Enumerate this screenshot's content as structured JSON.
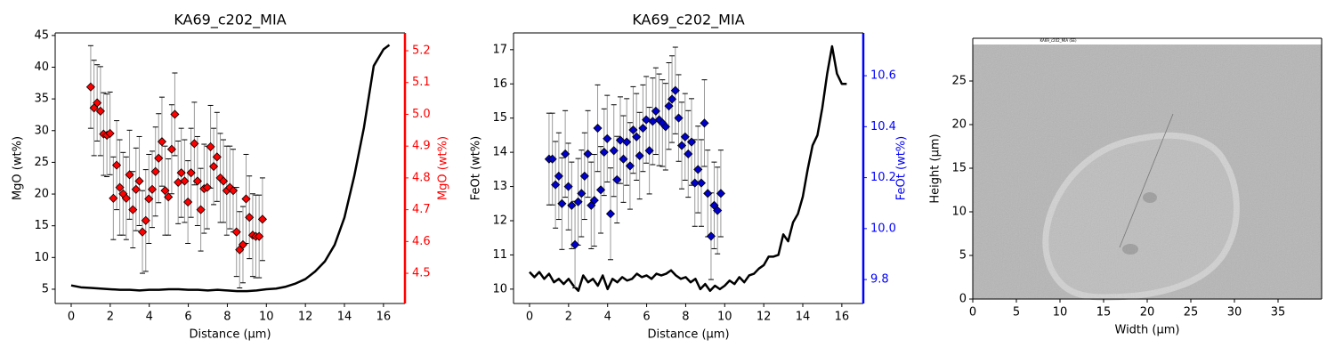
{
  "chart_data": [
    {
      "type": "line",
      "title": "KA69_c202_MIA",
      "xlabel": "Distance (µm)",
      "ylabel": "MgO (wt%)",
      "y2label": "MgO (wt%)",
      "y2color": "red",
      "xlim": [
        -0.82,
        17.1
      ],
      "xticks": [
        0,
        2,
        4,
        6,
        8,
        10,
        12,
        14,
        16
      ],
      "ylim": [
        2.75,
        45.4
      ],
      "yticks": [
        5,
        10,
        15,
        20,
        25,
        30,
        35,
        40,
        45
      ],
      "y2lim": [
        4.405,
        5.256
      ],
      "y2ticks": [
        4.5,
        4.6,
        4.7,
        4.8,
        4.9,
        {
          "value": 5,
          "label": "5.0"
        },
        5.1,
        5.2
      ],
      "series": [
        {
          "color": "black",
          "x": [
            0,
            0.5,
            1,
            1.5,
            2,
            2.5,
            3,
            3.5,
            4,
            4.5,
            5,
            5.5,
            6,
            6.5,
            7,
            7.5,
            8,
            8.5,
            9,
            9.5,
            10,
            10.5,
            11,
            11.5,
            12,
            12.5,
            13,
            13.5,
            14,
            14.5,
            15,
            15.5,
            16,
            16.3
          ],
          "values": [
            5.6,
            5.3,
            5.2,
            5.1,
            5.0,
            4.9,
            4.9,
            4.8,
            4.9,
            4.9,
            5.0,
            5.0,
            4.9,
            4.9,
            4.8,
            4.9,
            4.8,
            4.7,
            4.7,
            4.8,
            5.0,
            5.1,
            5.4,
            5.9,
            6.6,
            7.8,
            9.4,
            12.0,
            16.3,
            22.8,
            30.5,
            40.2,
            42.8,
            43.5
          ]
        },
        {
          "color": "red",
          "axis": "y2",
          "marker": "diamond",
          "x": [
            1.0,
            1.17,
            1.33,
            1.5,
            1.66,
            1.83,
            1.99,
            2.16,
            2.33,
            2.49,
            2.66,
            2.82,
            2.99,
            3.16,
            3.32,
            3.49,
            3.65,
            3.82,
            3.98,
            4.15,
            4.32,
            4.48,
            4.65,
            4.81,
            4.98,
            5.15,
            5.31,
            5.48,
            5.64,
            5.81,
            5.98,
            6.14,
            6.31,
            6.47,
            6.64,
            6.81,
            6.97,
            7.14,
            7.3,
            7.47,
            7.64,
            7.8,
            7.97,
            8.13,
            8.3,
            8.47,
            8.63,
            8.8,
            8.96,
            9.13,
            9.3,
            9.46,
            9.63,
            9.8
          ],
          "values": [
            5.086,
            5.02,
            5.036,
            5.01,
            4.938,
            4.934,
            4.94,
            4.736,
            4.84,
            4.77,
            4.75,
            4.736,
            4.81,
            4.7,
            4.764,
            4.79,
            4.63,
            4.666,
            4.734,
            4.764,
            4.82,
            4.862,
            4.914,
            4.76,
            4.74,
            4.89,
            5.0,
            4.786,
            4.816,
            4.79,
            4.724,
            4.816,
            4.908,
            4.79,
            4.7,
            4.766,
            4.77,
            4.898,
            4.836,
            4.866,
            4.8,
            4.79,
            4.76,
            4.77,
            4.76,
            4.63,
            4.574,
            4.59,
            4.734,
            4.676,
            4.62,
            4.616,
            4.616,
            4.67
          ],
          "errors": [
            0.13,
            0.15,
            0.12,
            0.14,
            0.13,
            0.13,
            0.13,
            0.13,
            0.14,
            0.15,
            0.13,
            0.13,
            0.14,
            0.12,
            0.13,
            0.14,
            0.13,
            0.16,
            0.14,
            0.12,
            0.14,
            0.14,
            0.14,
            0.14,
            0.12,
            0.14,
            0.13,
            0.13,
            0.14,
            0.13,
            0.13,
            0.14,
            0.13,
            0.14,
            0.13,
            0.14,
            0.13,
            0.13,
            0.12,
            0.14,
            0.14,
            0.13,
            0.14,
            0.13,
            0.13,
            0.14,
            0.12,
            0.12,
            0.14,
            0.13,
            0.13,
            0.13,
            0.13,
            0.13
          ]
        }
      ]
    },
    {
      "type": "line",
      "title": "KA69_c202_MIA",
      "xlabel": "Distance (µm)",
      "ylabel": "FeOt (wt%)",
      "y2label": "FeOt (wt%)",
      "y2color": "blue",
      "xlim": [
        -0.82,
        17.1
      ],
      "xticks": [
        0,
        2,
        4,
        6,
        8,
        10,
        12,
        14,
        16
      ],
      "ylim": [
        9.58,
        17.49
      ],
      "yticks": [
        10,
        11,
        12,
        13,
        14,
        15,
        16,
        17
      ],
      "y2lim": [
        9.706,
        10.768
      ],
      "y2ticks": [
        9.8,
        {
          "value": 10,
          "label": "10.0"
        },
        10.2,
        10.4,
        10.6
      ],
      "series": [
        {
          "color": "black",
          "x": [
            0,
            0.25,
            0.5,
            0.75,
            1,
            1.25,
            1.5,
            1.75,
            2,
            2.25,
            2.5,
            2.75,
            3,
            3.25,
            3.5,
            3.75,
            4,
            4.25,
            4.5,
            4.75,
            5,
            5.25,
            5.5,
            5.75,
            6,
            6.25,
            6.5,
            6.75,
            7,
            7.25,
            7.5,
            7.75,
            8,
            8.25,
            8.5,
            8.75,
            9,
            9.25,
            9.5,
            9.75,
            10,
            10.25,
            10.5,
            10.75,
            11,
            11.25,
            11.5,
            11.75,
            12,
            12.25,
            12.5,
            12.75,
            13,
            13.25,
            13.5,
            13.75,
            14,
            14.25,
            14.5,
            14.75,
            15,
            15.25,
            15.5,
            15.75,
            16,
            16.25
          ],
          "values": [
            10.5,
            10.35,
            10.5,
            10.3,
            10.45,
            10.2,
            10.3,
            10.15,
            10.3,
            10.1,
            9.95,
            10.4,
            10.2,
            10.3,
            10.1,
            10.4,
            10.0,
            10.3,
            10.2,
            10.35,
            10.25,
            10.3,
            10.45,
            10.35,
            10.4,
            10.3,
            10.45,
            10.4,
            10.45,
            10.55,
            10.4,
            10.3,
            10.35,
            10.2,
            10.3,
            10.0,
            10.15,
            9.95,
            10.1,
            10.0,
            10.1,
            10.25,
            10.15,
            10.35,
            10.2,
            10.4,
            10.45,
            10.6,
            10.7,
            10.95,
            10.95,
            11.0,
            11.6,
            11.4,
            11.95,
            12.2,
            12.7,
            13.5,
            14.2,
            14.5,
            15.3,
            16.3,
            17.1,
            16.3,
            16.0,
            16.0
          ]
        },
        {
          "color": "#0000cc",
          "axis": "y2",
          "marker": "diamond",
          "x": [
            1.0,
            1.17,
            1.33,
            1.5,
            1.66,
            1.83,
            1.99,
            2.16,
            2.33,
            2.49,
            2.66,
            2.82,
            2.99,
            3.16,
            3.32,
            3.49,
            3.65,
            3.82,
            3.98,
            4.15,
            4.32,
            4.48,
            4.65,
            4.81,
            4.98,
            5.15,
            5.31,
            5.48,
            5.64,
            5.81,
            5.98,
            6.14,
            6.31,
            6.47,
            6.64,
            6.81,
            6.97,
            7.14,
            7.3,
            7.47,
            7.64,
            7.8,
            7.97,
            8.13,
            8.3,
            8.47,
            8.63,
            8.8,
            8.96,
            9.13,
            9.3,
            9.46,
            9.63,
            9.8
          ],
          "values": [
            10.273,
            10.273,
            10.172,
            10.206,
            10.098,
            10.293,
            10.165,
            10.091,
            9.937,
            10.105,
            10.138,
            10.206,
            10.293,
            10.091,
            10.111,
            10.394,
            10.152,
            10.3,
            10.353,
            10.058,
            10.306,
            10.192,
            10.347,
            10.273,
            10.34,
            10.246,
            10.387,
            10.36,
            10.286,
            10.394,
            10.427,
            10.306,
            10.421,
            10.461,
            10.427,
            10.414,
            10.4,
            10.481,
            10.508,
            10.542,
            10.434,
            10.326,
            10.36,
            10.293,
            10.34,
            10.179,
            10.232,
            10.179,
            10.414,
            10.138,
            9.97,
            10.091,
            10.071,
            10.138
          ],
          "errors": [
            0.18,
            0.18,
            0.17,
            0.17,
            0.18,
            0.17,
            0.17,
            0.17,
            0.17,
            0.17,
            0.17,
            0.17,
            0.17,
            0.17,
            0.18,
            0.17,
            0.17,
            0.17,
            0.17,
            0.18,
            0.18,
            0.17,
            0.17,
            0.17,
            0.17,
            0.17,
            0.17,
            0.17,
            0.17,
            0.17,
            0.17,
            0.17,
            0.17,
            0.17,
            0.18,
            0.17,
            0.17,
            0.17,
            0.17,
            0.17,
            0.17,
            0.17,
            0.17,
            0.17,
            0.17,
            0.17,
            0.17,
            0.17,
            0.17,
            0.17,
            0.17,
            0.17,
            0.17,
            0.17
          ]
        }
      ]
    },
    {
      "type": "image",
      "image_title": "KA69_c202_MIA (SE)",
      "xlabel": "Width (µm)",
      "ylabel": "Height (µm)",
      "xlim": [
        0,
        40
      ],
      "xticks": [
        0,
        5,
        10,
        15,
        20,
        25,
        30,
        35
      ],
      "ylim": [
        0,
        29.9
      ],
      "yticks": [
        0,
        5,
        10,
        15,
        20,
        25
      ]
    }
  ]
}
